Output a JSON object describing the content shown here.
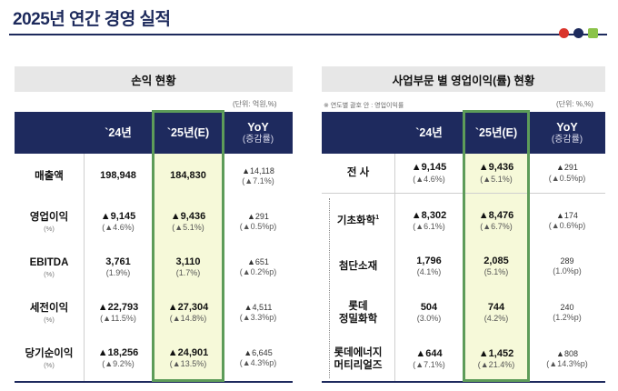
{
  "page": {
    "title": "2025년 연간 경영 실적",
    "colors": {
      "navy": "#1e2a5e",
      "highlight_border": "#5d9c59",
      "highlight_fill": "#f6f9d9",
      "dot_red": "#d9342b",
      "dot_green": "#8bc34a"
    }
  },
  "left": {
    "heading": "손익 현황",
    "unit": "(단위: 억원,%)",
    "columns": {
      "y24": "`24년",
      "y25": "`25년(E)",
      "yoy": "YoY",
      "yoy_sub": "(증감률)"
    },
    "rows": [
      {
        "label": "매출액",
        "pct": "",
        "v24": "198,948",
        "v24_sub": "",
        "v25": "184,830",
        "v25_sub": "",
        "yoy": "▲14,118",
        "yoy_sub": "(▲7.1%)"
      },
      {
        "label": "영업이익",
        "pct": "(%)",
        "v24": "▲9,145",
        "v24_sub": "(▲4.6%)",
        "v25": "▲9,436",
        "v25_sub": "(▲5.1%)",
        "yoy": "▲291",
        "yoy_sub": "(▲0.5%p)"
      },
      {
        "label": "EBITDA",
        "pct": "(%)",
        "v24": "3,761",
        "v24_sub": "(1.9%)",
        "v25": "3,110",
        "v25_sub": "(1.7%)",
        "yoy": "▲651",
        "yoy_sub": "(▲0.2%p)"
      },
      {
        "label": "세전이익",
        "pct": "(%)",
        "v24": "▲22,793",
        "v24_sub": "(▲11.5%)",
        "v25": "▲27,304",
        "v25_sub": "(▲14.8%)",
        "yoy": "▲4,511",
        "yoy_sub": "(▲3.3%p)"
      },
      {
        "label": "당기순이익",
        "pct": "(%)",
        "v24": "▲18,256",
        "v24_sub": "(▲9.2%)",
        "v25": "▲24,901",
        "v25_sub": "(▲13.5%)",
        "yoy": "▲6,645",
        "yoy_sub": "(▲4.3%p)"
      }
    ]
  },
  "right": {
    "heading": "사업부문 별 영업이익(률) 현황",
    "note": "※ 연도별 괄호 안 : 영업이익률",
    "unit": "(단위: %,%)",
    "columns": {
      "y24": "`24년",
      "y25": "`25년(E)",
      "yoy": "YoY",
      "yoy_sub": "(증감률)"
    },
    "rows": [
      {
        "label": "전 사",
        "label2": "",
        "sup": "",
        "v24": "▲9,145",
        "v24_sub": "(▲4.6%)",
        "v25": "▲9,436",
        "v25_sub": "(▲5.1%)",
        "yoy": "▲291",
        "yoy_sub": "(▲0.5%p)"
      },
      {
        "label": "기초화학",
        "label2": "",
        "sup": "1",
        "v24": "▲8,302",
        "v24_sub": "(▲6.1%)",
        "v25": "▲8,476",
        "v25_sub": "(▲6.7%)",
        "yoy": "▲174",
        "yoy_sub": "(▲0.6%p)"
      },
      {
        "label": "첨단소재",
        "label2": "",
        "sup": "",
        "v24": "1,796",
        "v24_sub": "(4.1%)",
        "v25": "2,085",
        "v25_sub": "(5.1%)",
        "yoy": "289",
        "yoy_sub": "(1.0%p)"
      },
      {
        "label": "롯데",
        "label2": "정밀화학",
        "sup": "",
        "v24": "504",
        "v24_sub": "(3.0%)",
        "v25": "744",
        "v25_sub": "(4.2%)",
        "yoy": "240",
        "yoy_sub": "(1.2%p)"
      },
      {
        "label": "롯데에너지",
        "label2": "머티리얼즈",
        "sup": "",
        "v24": "▲644",
        "v24_sub": "(▲7.1%)",
        "v25": "▲1,452",
        "v25_sub": "(▲21.4%)",
        "yoy": "▲808",
        "yoy_sub": "(▲14.3%p)"
      }
    ]
  }
}
